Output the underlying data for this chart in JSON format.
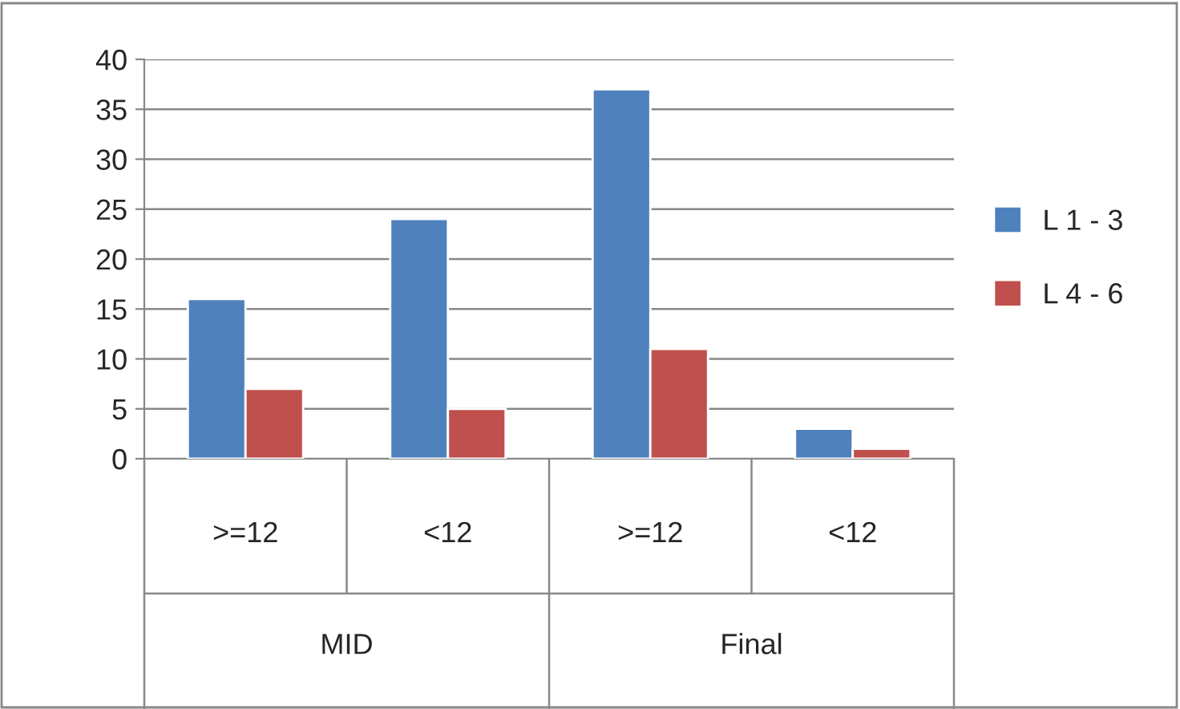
{
  "chart_data": {
    "type": "bar",
    "categories": [
      ">=12",
      "<12",
      ">=12",
      "<12"
    ],
    "series": [
      {
        "name": "L 1 - 3",
        "color": "#4f81bd",
        "values": [
          16,
          24,
          37,
          3
        ]
      },
      {
        "name": "L 4 - 6",
        "color": "#c0504d",
        "values": [
          7,
          5,
          11,
          1
        ]
      }
    ],
    "annotations": [
      "MID",
      "Final"
    ],
    "ylim": [
      0,
      40
    ],
    "yticks": [
      0,
      5,
      10,
      15,
      20,
      25,
      30,
      35,
      40
    ],
    "grid": "y",
    "legend": "right"
  }
}
